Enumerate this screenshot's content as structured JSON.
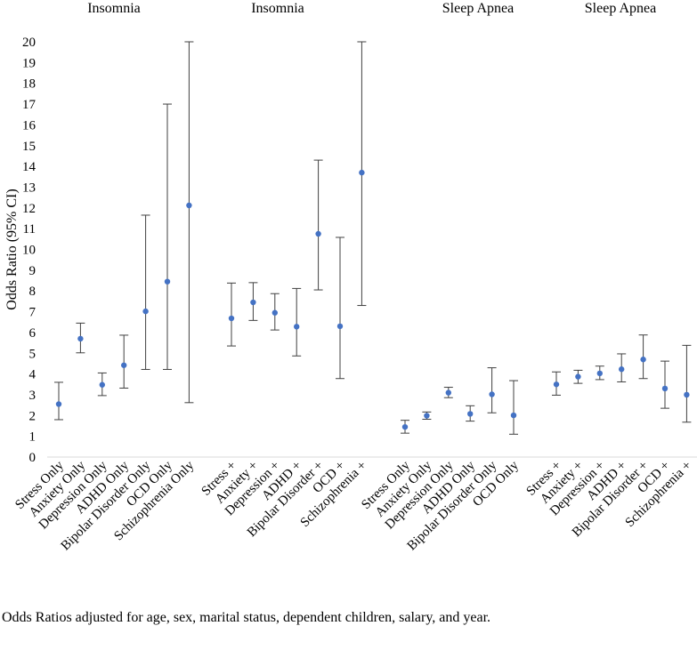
{
  "chart_data": {
    "type": "scatter",
    "subtype": "error-bar",
    "ylabel": "Odds Ratio (95% CI)",
    "ylim": [
      0,
      20
    ],
    "yticks": [
      0,
      1,
      2,
      3,
      4,
      5,
      6,
      7,
      8,
      9,
      10,
      11,
      12,
      13,
      14,
      15,
      16,
      17,
      18,
      19,
      20
    ],
    "grid": false,
    "point_color": "#4472c4",
    "groups": [
      {
        "title": "Insomnia",
        "categories": [
          "Stress Only",
          "Anxiety Only",
          "Depression Only",
          "ADHD Only",
          "Bipolar Disorder Only",
          "OCD Only",
          "Schizophrenia Only"
        ],
        "values": [
          2.55,
          5.7,
          3.48,
          4.42,
          7.02,
          8.45,
          12.12
        ],
        "lower": [
          1.8,
          5.02,
          2.96,
          3.32,
          4.22,
          4.22,
          2.62
        ],
        "upper": [
          3.6,
          6.45,
          4.05,
          5.87,
          11.65,
          17.0,
          20.0
        ]
      },
      {
        "title": "Insomnia",
        "categories": [
          "Stress +",
          "Anxiety +",
          "Depression +",
          "ADHD +",
          "Bipolar Disorder +",
          "OCD +",
          "Schizophrenia +"
        ],
        "values": [
          6.68,
          7.45,
          6.95,
          6.28,
          10.75,
          6.3,
          13.7
        ],
        "lower": [
          5.35,
          6.58,
          6.12,
          4.87,
          8.05,
          3.78,
          7.3
        ],
        "upper": [
          8.38,
          8.4,
          7.87,
          8.12,
          14.3,
          10.58,
          20.0
        ]
      },
      {
        "title": "Sleep Apnea",
        "categories": [
          "Stress Only",
          "Anxiety Only",
          "Depression Only",
          "ADHD Only",
          "Bipolar Disorder Only",
          "OCD Only"
        ],
        "values": [
          1.45,
          1.99,
          3.1,
          2.08,
          3.02,
          2.01
        ],
        "lower": [
          1.15,
          1.82,
          2.86,
          1.73,
          2.13,
          1.1
        ],
        "upper": [
          1.77,
          2.17,
          3.36,
          2.47,
          4.3,
          3.68
        ]
      },
      {
        "title": "Sleep Apnea",
        "categories": [
          "Stress +",
          "Anxiety +",
          "Depression +",
          "ADHD +",
          "Bipolar Disorder +",
          "OCD +",
          "Schizophrenia +"
        ],
        "values": [
          3.5,
          3.87,
          4.03,
          4.23,
          4.7,
          3.3,
          3.0
        ],
        "lower": [
          2.98,
          3.55,
          3.73,
          3.62,
          3.78,
          2.35,
          1.68
        ],
        "upper": [
          4.1,
          4.18,
          4.38,
          4.97,
          5.88,
          4.62,
          5.38
        ]
      }
    ]
  },
  "footnote": "Odds Ratios adjusted for age, sex, marital status, dependent children, salary, and year."
}
